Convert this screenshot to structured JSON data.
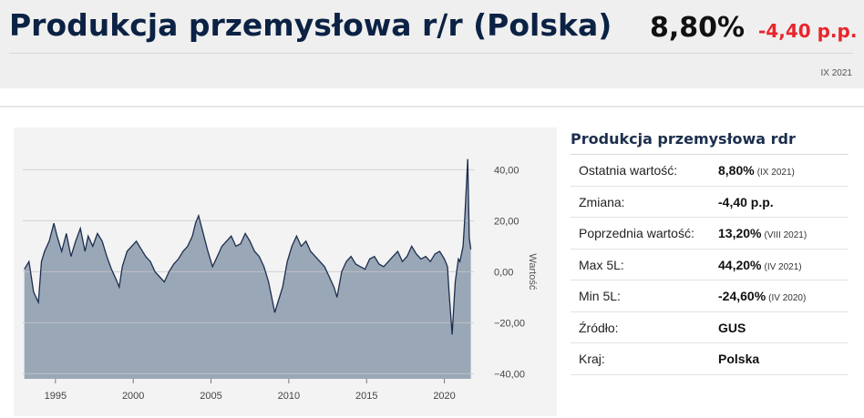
{
  "header": {
    "title": "Produkcja przemysłowa r/r (Polska)",
    "value": "8,80%",
    "change": "-4,40 p.p.",
    "period": "IX 2021"
  },
  "info": {
    "title": "Produkcja przemysłowa rdr",
    "rows": [
      {
        "label": "Ostatnia wartość:",
        "value": "8,80%",
        "note": "(IX 2021)"
      },
      {
        "label": "Zmiana:",
        "value": "-4,40 p.p.",
        "note": ""
      },
      {
        "label": "Poprzednia wartość:",
        "value": "13,20%",
        "note": "(VIII 2021)"
      },
      {
        "label": "Max 5L:",
        "value": "44,20%",
        "note": "(IV 2021)"
      },
      {
        "label": "Min 5L:",
        "value": "-24,60%",
        "note": "(IV 2020)"
      },
      {
        "label": "Źródło:",
        "value": "GUS",
        "note": ""
      },
      {
        "label": "Kraj:",
        "value": "Polska",
        "note": ""
      }
    ]
  },
  "colors": {
    "area_fill": "#9aa7b7",
    "line": "#1c2e4f",
    "title": "#0b2244",
    "change": "#e8262c"
  },
  "chart_data": {
    "type": "area",
    "title": "",
    "xlabel": "",
    "ylabel": "Wartość",
    "xlim": [
      1992.9,
      2021.9
    ],
    "ylim": [
      -42,
      48
    ],
    "y_ticks": [
      40,
      20,
      0,
      -20,
      -40
    ],
    "y_tick_labels": [
      "40,00",
      "20,00",
      "0,00",
      "−20,00",
      "−40,00"
    ],
    "x_ticks": [
      1995,
      2000,
      2005,
      2010,
      2015,
      2020
    ],
    "x_tick_labels": [
      "1995",
      "2000",
      "2005",
      "2010",
      "2015",
      "2020"
    ],
    "grid": true,
    "series": [
      {
        "x": [
          1993.0,
          1993.3,
          1993.6,
          1993.9,
          1994.1,
          1994.3,
          1994.6,
          1994.9,
          1995.1,
          1995.4,
          1995.7,
          1996.0,
          1996.3,
          1996.6,
          1996.9,
          1997.1,
          1997.4,
          1997.7,
          1998.0,
          1998.3,
          1998.6,
          1998.9,
          1999.1,
          1999.3,
          1999.6,
          1999.9,
          2000.2,
          2000.5,
          2000.8,
          2001.1,
          2001.4,
          2001.7,
          2002.0,
          2002.3,
          2002.6,
          2002.9,
          2003.2,
          2003.5,
          2003.8,
          2004.0,
          2004.2,
          2004.5,
          2004.8,
          2005.1,
          2005.4,
          2005.7,
          2006.0,
          2006.3,
          2006.6,
          2006.9,
          2007.2,
          2007.5,
          2007.8,
          2008.1,
          2008.4,
          2008.7,
          2008.9,
          2009.1,
          2009.3,
          2009.6,
          2009.9,
          2010.2,
          2010.5,
          2010.8,
          2011.1,
          2011.4,
          2011.7,
          2012.0,
          2012.3,
          2012.6,
          2012.9,
          2013.1,
          2013.4,
          2013.7,
          2014.0,
          2014.3,
          2014.6,
          2014.9,
          2015.2,
          2015.5,
          2015.8,
          2016.1,
          2016.4,
          2016.7,
          2017.0,
          2017.3,
          2017.6,
          2017.9,
          2018.2,
          2018.5,
          2018.8,
          2019.1,
          2019.4,
          2019.7,
          2020.0,
          2020.2,
          2020.3,
          2020.5,
          2020.7,
          2020.9,
          2021.0,
          2021.2,
          2021.3,
          2021.5,
          2021.6,
          2021.7
        ],
        "y": [
          1,
          4,
          -8,
          -12,
          4,
          8,
          12,
          19,
          14,
          8,
          15,
          6,
          12,
          17,
          8,
          14,
          10,
          15,
          12,
          6,
          1,
          -3,
          -6,
          2,
          8,
          10,
          12,
          9,
          6,
          4,
          0,
          -2,
          -4,
          0,
          3,
          5,
          8,
          10,
          14,
          19,
          22,
          15,
          8,
          2,
          6,
          10,
          12,
          14,
          10,
          11,
          15,
          12,
          8,
          6,
          2,
          -4,
          -10,
          -16,
          -12,
          -6,
          4,
          10,
          14,
          10,
          12,
          8,
          6,
          4,
          2,
          -2,
          -6,
          -10,
          0,
          4,
          6,
          3,
          2,
          1,
          5,
          6,
          3,
          2,
          4,
          6,
          8,
          4,
          6,
          10,
          7,
          5,
          6,
          4,
          7,
          8,
          5,
          2,
          -8,
          -24.6,
          -4,
          5,
          4,
          10,
          20,
          44.2,
          13.2,
          8.8
        ]
      }
    ]
  }
}
